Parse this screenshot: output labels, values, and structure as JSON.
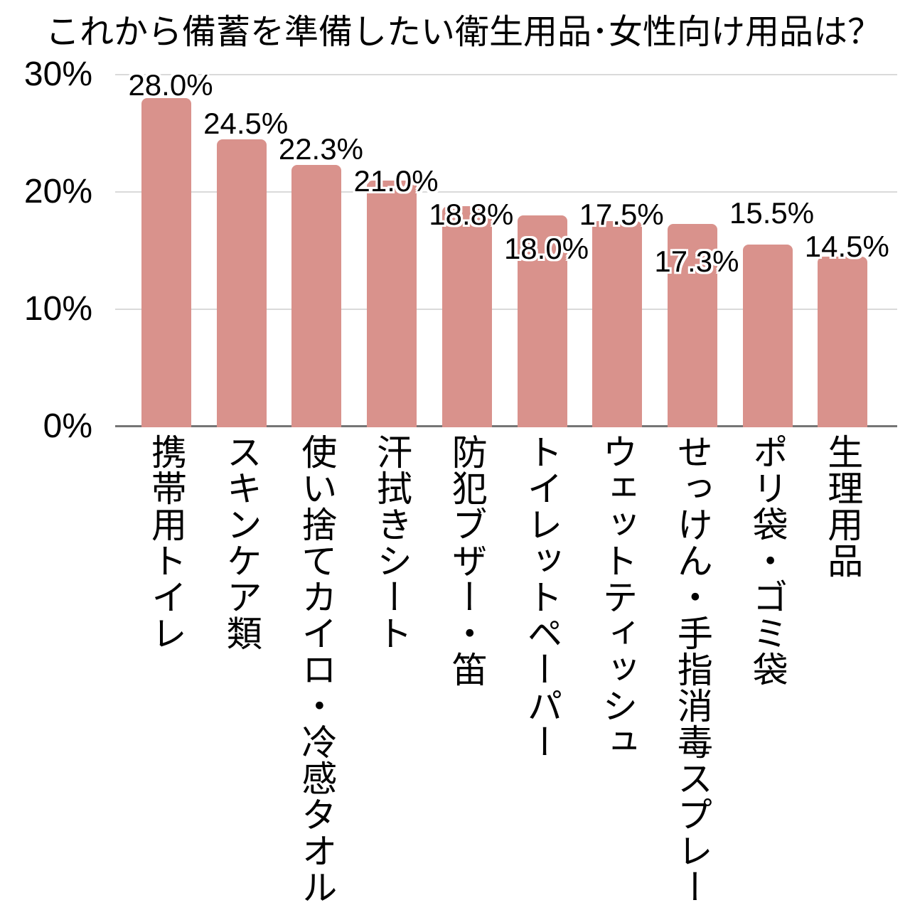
{
  "page": {
    "background": "#ffffff"
  },
  "colors": {
    "bar": "#d9928c",
    "gridline": "#dadada",
    "axis_line": "#757575",
    "text": "#000000",
    "label_halo": "#ffffff"
  },
  "chart_data": {
    "type": "bar",
    "title": "これから備蓄を準備したい衛生用品･女性向け用品は？",
    "categories": [
      "携帯用トイレ",
      "スキンケア類",
      "使い捨てカイロ・冷感タオル",
      "汗拭きシート",
      "防犯ブザー・笛",
      "トイレットペーパー",
      "ウェットティッシュ",
      "せっけん・手指消毒スプレー",
      "ポリ袋・ゴミ袋",
      "生理用品"
    ],
    "values": [
      28.0,
      24.5,
      22.3,
      21.0,
      18.8,
      18.0,
      17.5,
      17.3,
      15.5,
      14.5
    ],
    "value_labels": [
      "28.0%",
      "24.5%",
      "22.3%",
      "21.0%",
      "18.8%",
      "18.0%",
      "17.5%",
      "17.3%",
      "15.5%",
      "14.5%"
    ],
    "xlabel": "",
    "ylabel": "",
    "ylim": [
      0,
      30
    ],
    "grid": true,
    "legend": "none",
    "y_axis": {
      "ticks": [
        {
          "label": "0%",
          "value": 0
        },
        {
          "label": "10%",
          "value": 10
        },
        {
          "label": "20%",
          "value": 20
        },
        {
          "label": "30%",
          "value": 30
        }
      ]
    }
  }
}
